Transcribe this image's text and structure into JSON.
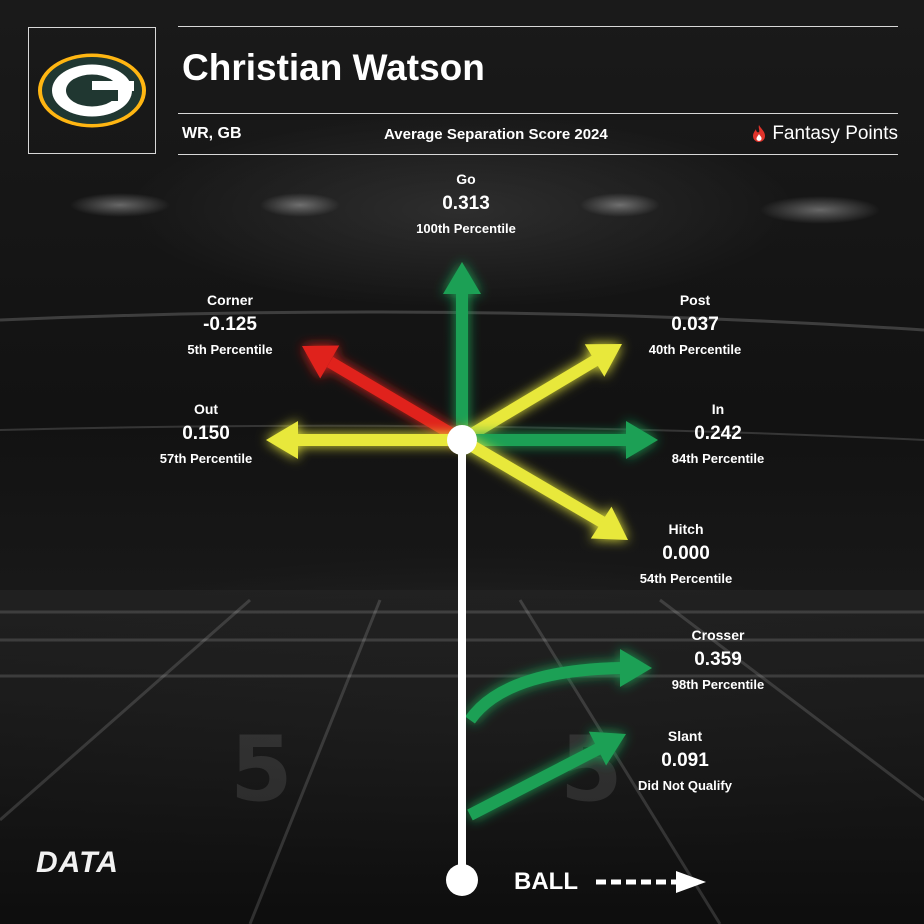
{
  "header": {
    "player_name": "Christian Watson",
    "position_team": "WR, GB",
    "metric_title": "Average Separation Score 2024",
    "brand": "Fantasy Points",
    "team_logo": "green-bay-packers-logo"
  },
  "footer": {
    "ball_label": "BALL",
    "data_logo": "DATA"
  },
  "colors": {
    "high": "#1fa055",
    "mid": "#e8e83a",
    "low": "#e0201c",
    "logo_green": "#203731",
    "logo_gold": "#ffb612"
  },
  "chart_data": {
    "type": "route-tree",
    "title": "Average Separation Score 2024",
    "routes": [
      {
        "name": "Go",
        "value": "0.313",
        "percentile": "100th Percentile",
        "color": "green"
      },
      {
        "name": "Corner",
        "value": "-0.125",
        "percentile": "5th Percentile",
        "color": "red"
      },
      {
        "name": "Post",
        "value": "0.037",
        "percentile": "40th Percentile",
        "color": "yellow"
      },
      {
        "name": "Out",
        "value": "0.150",
        "percentile": "57th Percentile",
        "color": "yellow"
      },
      {
        "name": "In",
        "value": "0.242",
        "percentile": "84th Percentile",
        "color": "green"
      },
      {
        "name": "Hitch",
        "value": "0.000",
        "percentile": "54th Percentile",
        "color": "yellow"
      },
      {
        "name": "Crosser",
        "value": "0.359",
        "percentile": "98th Percentile",
        "color": "green"
      },
      {
        "name": "Slant",
        "value": "0.091",
        "percentile": "Did Not Qualify",
        "color": "green"
      }
    ]
  }
}
